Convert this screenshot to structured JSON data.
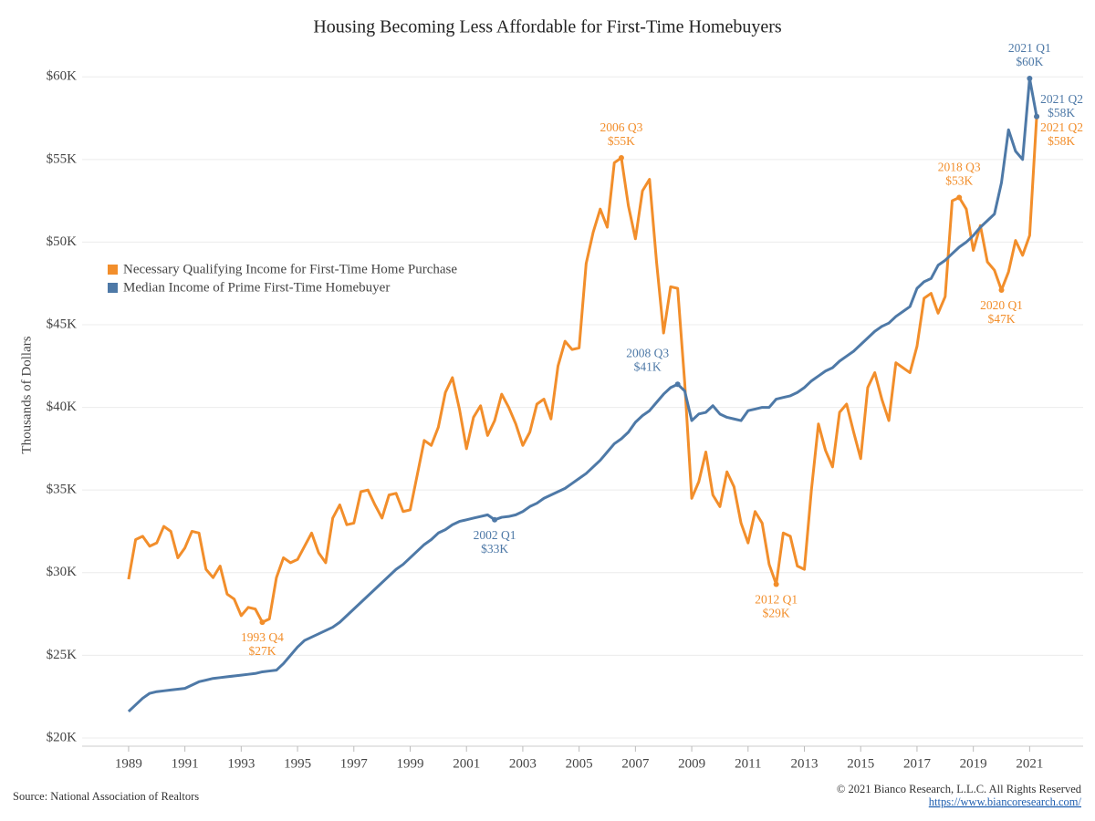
{
  "chart_data": {
    "type": "line",
    "title": "Housing Becoming Less Affordable for First-Time Homebuyers",
    "ylabel": "Thousands of Dollars",
    "source": "Source: National Association of Realtors",
    "copyright": "© 2021 Bianco Research, L.L.C. All Rights Reserved",
    "link": "https://www.biancoresearch.com/",
    "x": [
      1989,
      1989.25,
      1989.5,
      1989.75,
      1990,
      1990.25,
      1990.5,
      1990.75,
      1991,
      1991.25,
      1991.5,
      1991.75,
      1992,
      1992.25,
      1992.5,
      1992.75,
      1993,
      1993.25,
      1993.5,
      1993.75,
      1994,
      1994.25,
      1994.5,
      1994.75,
      1995,
      1995.25,
      1995.5,
      1995.75,
      1996,
      1996.25,
      1996.5,
      1996.75,
      1997,
      1997.25,
      1997.5,
      1997.75,
      1998,
      1998.25,
      1998.5,
      1998.75,
      1999,
      1999.25,
      1999.5,
      1999.75,
      2000,
      2000.25,
      2000.5,
      2000.75,
      2001,
      2001.25,
      2001.5,
      2001.75,
      2002,
      2002.25,
      2002.5,
      2002.75,
      2003,
      2003.25,
      2003.5,
      2003.75,
      2004,
      2004.25,
      2004.5,
      2004.75,
      2005,
      2005.25,
      2005.5,
      2005.75,
      2006,
      2006.25,
      2006.5,
      2006.75,
      2007,
      2007.25,
      2007.5,
      2007.75,
      2008,
      2008.25,
      2008.5,
      2008.75,
      2009,
      2009.25,
      2009.5,
      2009.75,
      2010,
      2010.25,
      2010.5,
      2010.75,
      2011,
      2011.25,
      2011.5,
      2011.75,
      2012,
      2012.25,
      2012.5,
      2012.75,
      2013,
      2013.25,
      2013.5,
      2013.75,
      2014,
      2014.25,
      2014.5,
      2014.75,
      2015,
      2015.25,
      2015.5,
      2015.75,
      2016,
      2016.25,
      2016.5,
      2016.75,
      2017,
      2017.25,
      2017.5,
      2017.75,
      2018,
      2018.25,
      2018.5,
      2018.75,
      2019,
      2019.25,
      2019.5,
      2019.75,
      2020,
      2020.25,
      2020.5,
      2020.75,
      2021,
      2021.25
    ],
    "series": [
      {
        "name": "Necessary Qualifying Income for First-Time Home Purchase",
        "color": "#f28e2b",
        "values": [
          29.6,
          32.0,
          32.2,
          31.6,
          31.8,
          32.8,
          32.5,
          30.9,
          31.5,
          32.5,
          32.4,
          30.2,
          29.7,
          30.4,
          28.7,
          28.4,
          27.4,
          27.9,
          27.8,
          27.0,
          27.2,
          29.7,
          30.9,
          30.6,
          30.8,
          31.6,
          32.4,
          31.2,
          30.6,
          33.3,
          34.1,
          32.9,
          33.0,
          34.9,
          35.0,
          34.1,
          33.3,
          34.7,
          34.8,
          33.7,
          33.8,
          35.9,
          38.0,
          37.7,
          38.8,
          40.9,
          41.8,
          39.9,
          37.5,
          39.4,
          40.1,
          38.3,
          39.2,
          40.8,
          40.0,
          39.0,
          37.7,
          38.5,
          40.2,
          40.5,
          39.3,
          42.5,
          44.0,
          43.5,
          43.6,
          48.7,
          50.6,
          52.0,
          50.9,
          54.8,
          55.1,
          52.2,
          50.2,
          53.1,
          53.8,
          48.8,
          44.5,
          47.3,
          47.2,
          41.5,
          34.5,
          35.5,
          37.3,
          34.7,
          34.0,
          36.1,
          35.2,
          33.0,
          31.8,
          33.7,
          33.0,
          30.5,
          29.3,
          32.4,
          32.2,
          30.4,
          30.2,
          35.0,
          39.0,
          37.4,
          36.4,
          39.7,
          40.2,
          38.5,
          36.9,
          41.2,
          42.1,
          40.5,
          39.2,
          42.7,
          42.4,
          42.1,
          43.7,
          46.6,
          46.9,
          45.7,
          46.7,
          52.5,
          52.7,
          52.0,
          49.5,
          51.0,
          48.8,
          48.3,
          47.1,
          48.2,
          50.1,
          49.2,
          50.4,
          57.6
        ],
        "annotations": [
          {
            "x": 1993.75,
            "label": "1993 Q4",
            "value_label": "$27K",
            "position": "below"
          },
          {
            "x": 2006.5,
            "label": "2006 Q3",
            "value_label": "$55K",
            "position": "above"
          },
          {
            "x": 2012,
            "label": "2012 Q1",
            "value_label": "$29K",
            "position": "below"
          },
          {
            "x": 2018.5,
            "label": "2018 Q3",
            "value_label": "$53K",
            "position": "above"
          },
          {
            "x": 2020,
            "label": "2020 Q1",
            "value_label": "$47K",
            "position": "below"
          },
          {
            "x": 2021.25,
            "label": "2021 Q2",
            "value_label": "$58K",
            "position": "lower-right"
          }
        ]
      },
      {
        "name": "Median Income of Prime First-Time Homebuyer",
        "color": "#4e79a7",
        "values": [
          21.6,
          22.0,
          22.4,
          22.7,
          22.8,
          22.85,
          22.9,
          22.95,
          23.0,
          23.2,
          23.4,
          23.5,
          23.6,
          23.65,
          23.7,
          23.75,
          23.8,
          23.85,
          23.9,
          24.0,
          24.05,
          24.1,
          24.5,
          25.0,
          25.5,
          25.9,
          26.1,
          26.3,
          26.5,
          26.7,
          27.0,
          27.4,
          27.8,
          28.2,
          28.6,
          29.0,
          29.4,
          29.8,
          30.2,
          30.5,
          30.9,
          31.3,
          31.7,
          32.0,
          32.4,
          32.6,
          32.9,
          33.1,
          33.2,
          33.3,
          33.4,
          33.5,
          33.2,
          33.35,
          33.4,
          33.5,
          33.7,
          34.0,
          34.2,
          34.5,
          34.7,
          34.9,
          35.1,
          35.4,
          35.7,
          36.0,
          36.4,
          36.8,
          37.3,
          37.8,
          38.1,
          38.5,
          39.1,
          39.5,
          39.8,
          40.3,
          40.8,
          41.2,
          41.4,
          41.0,
          39.2,
          39.6,
          39.7,
          40.1,
          39.6,
          39.4,
          39.3,
          39.2,
          39.8,
          39.9,
          40.0,
          40.0,
          40.5,
          40.6,
          40.7,
          40.9,
          41.2,
          41.6,
          41.9,
          42.2,
          42.4,
          42.8,
          43.1,
          43.4,
          43.8,
          44.2,
          44.6,
          44.9,
          45.1,
          45.5,
          45.8,
          46.1,
          47.2,
          47.6,
          47.8,
          48.6,
          48.9,
          49.3,
          49.7,
          50.0,
          50.4,
          50.9,
          51.3,
          51.7,
          53.6,
          56.8,
          55.5,
          55.0,
          59.9,
          57.6
        ],
        "annotations": [
          {
            "x": 2002,
            "label": "2002 Q1",
            "value_label": "$33K",
            "position": "below"
          },
          {
            "x": 2008.5,
            "label": "2008 Q3",
            "value_label": "$41K",
            "position": "above-left"
          },
          {
            "x": 2021,
            "label": "2021 Q1",
            "value_label": "$60K",
            "position": "above"
          },
          {
            "x": 2021.25,
            "label": "2021 Q2",
            "value_label": "$58K",
            "position": "upper-right"
          }
        ]
      }
    ],
    "xlim": [
      1987.35,
      2022.9
    ],
    "xticks": [
      1989,
      1991,
      1993,
      1995,
      1997,
      1999,
      2001,
      2003,
      2005,
      2007,
      2009,
      2011,
      2013,
      2015,
      2017,
      2019,
      2021
    ],
    "ylim": [
      19.5,
      62
    ],
    "yticks": [
      {
        "value": 20,
        "label": "$20K"
      },
      {
        "value": 25,
        "label": "$25K"
      },
      {
        "value": 30,
        "label": "$30K"
      },
      {
        "value": 35,
        "label": "$35K"
      },
      {
        "value": 40,
        "label": "$40K"
      },
      {
        "value": 45,
        "label": "$45K"
      },
      {
        "value": 50,
        "label": "$50K"
      },
      {
        "value": 55,
        "label": "$55K"
      },
      {
        "value": 60,
        "label": "$60K"
      }
    ],
    "grid": true,
    "legend": "left"
  }
}
